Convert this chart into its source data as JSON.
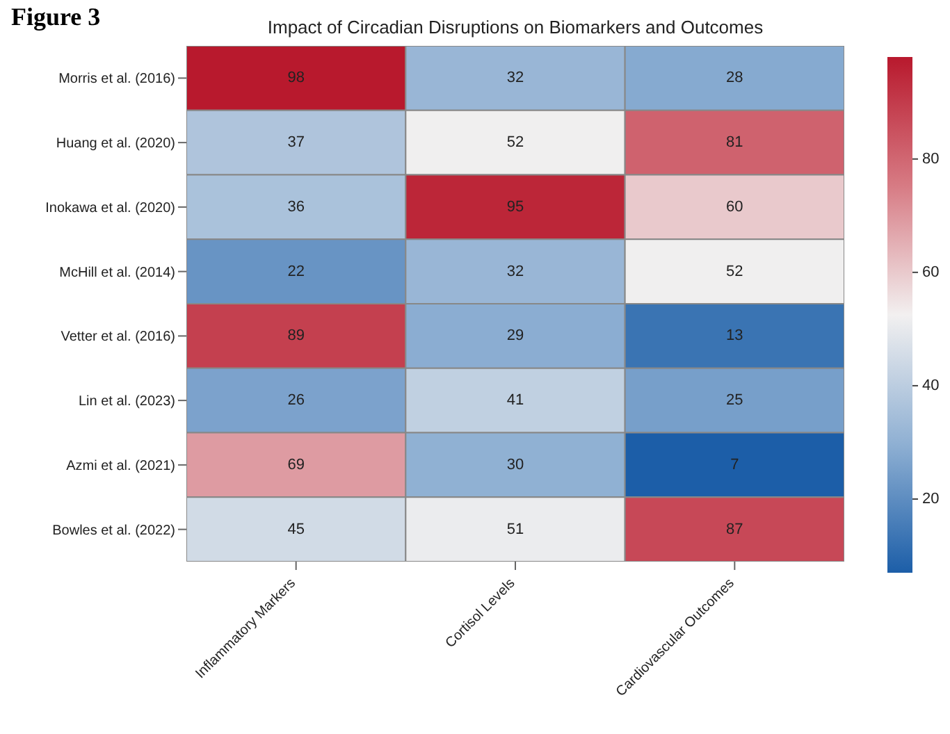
{
  "chart_data": {
    "type": "heatmap",
    "title": "Impact of Circadian Disruptions on Biomarkers and Outcomes",
    "annotations": [
      "Figure 3"
    ],
    "categories": [
      "Inflammatory Markers",
      "Cortisol Levels",
      "Cardiovascular Outcomes"
    ],
    "y_categories": [
      "Morris et al. (2016)",
      "Huang et al. (2020)",
      "Inokawa et al. (2020)",
      "McHill et al. (2014)",
      "Vetter et al. (2016)",
      "Lin et al. (2023)",
      "Azmi et al. (2021)",
      "Bowles et al. (2022)"
    ],
    "cells": [
      [
        98,
        32,
        28
      ],
      [
        37,
        52,
        81
      ],
      [
        36,
        95,
        60
      ],
      [
        22,
        32,
        52
      ],
      [
        89,
        29,
        13
      ],
      [
        26,
        41,
        25
      ],
      [
        69,
        30,
        7
      ],
      [
        45,
        51,
        87
      ]
    ],
    "data_labels": true,
    "colors": [
      "#1c5ea8",
      "#8fb0d3",
      "#f2f0f0",
      "#d77b84",
      "#b8192d"
    ],
    "clim": [
      7,
      98
    ],
    "cticks": [
      20,
      40,
      60,
      80
    ]
  }
}
